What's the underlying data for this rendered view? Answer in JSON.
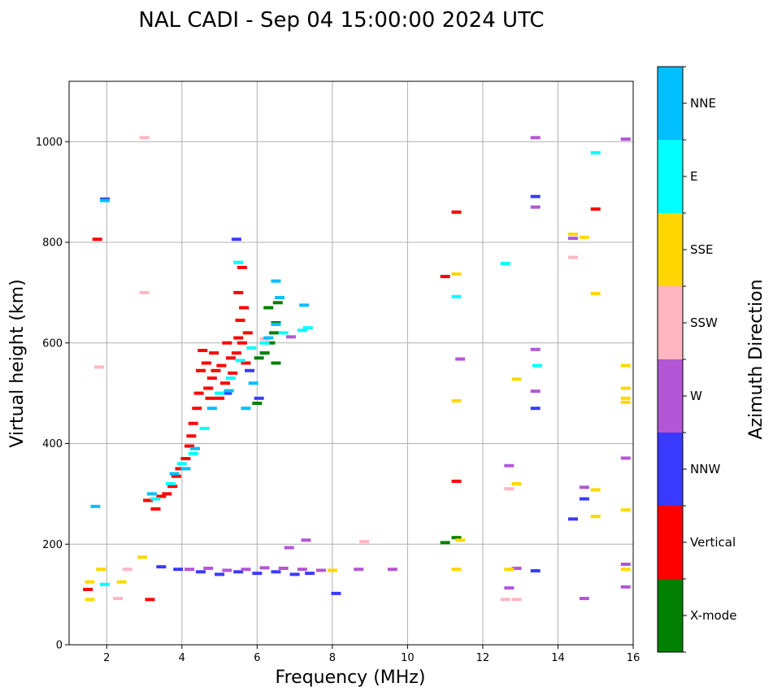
{
  "chart_data": {
    "type": "scatter",
    "title": "NAL CADI - Sep 04 15:00:00 2024 UTC",
    "xlabel": "Frequency (MHz)",
    "ylabel": "Virtual height (km)",
    "xlim": [
      1,
      16
    ],
    "ylim": [
      0,
      1120
    ],
    "xticks": [
      2,
      4,
      6,
      8,
      10,
      12,
      14,
      16
    ],
    "yticks": [
      0,
      200,
      400,
      600,
      800,
      1000
    ],
    "grid": true,
    "colorbar": {
      "label": "Azimuth Direction",
      "categories": [
        "X-mode",
        "Vertical",
        "NNW",
        "W",
        "SSW",
        "SSE",
        "E",
        "NNE"
      ],
      "colors": [
        "#008000",
        "#ff0000",
        "#3a3aff",
        "#b356d6",
        "#ffb6c1",
        "#ffd700",
        "#00ffff",
        "#00bfff"
      ]
    },
    "series": [
      {
        "name": "Vertical",
        "points": [
          [
            1.75,
            806
          ],
          [
            1.5,
            110
          ],
          [
            3.15,
            90
          ],
          [
            3.1,
            287
          ],
          [
            3.3,
            270
          ],
          [
            3.45,
            295
          ],
          [
            3.6,
            300
          ],
          [
            3.75,
            315
          ],
          [
            3.85,
            335
          ],
          [
            3.95,
            350
          ],
          [
            4.1,
            370
          ],
          [
            4.2,
            395
          ],
          [
            4.25,
            415
          ],
          [
            4.3,
            440
          ],
          [
            4.4,
            470
          ],
          [
            4.45,
            500
          ],
          [
            4.5,
            545
          ],
          [
            4.55,
            585
          ],
          [
            4.65,
            560
          ],
          [
            4.7,
            510
          ],
          [
            4.75,
            490
          ],
          [
            4.8,
            530
          ],
          [
            4.85,
            580
          ],
          [
            4.9,
            545
          ],
          [
            5.0,
            490
          ],
          [
            5.05,
            555
          ],
          [
            5.15,
            520
          ],
          [
            5.2,
            600
          ],
          [
            5.3,
            570
          ],
          [
            5.35,
            540
          ],
          [
            5.45,
            580
          ],
          [
            5.5,
            610
          ],
          [
            5.55,
            645
          ],
          [
            5.6,
            600
          ],
          [
            5.65,
            670
          ],
          [
            5.7,
            560
          ],
          [
            5.75,
            620
          ],
          [
            5.5,
            700
          ],
          [
            5.6,
            750
          ],
          [
            11.3,
            325
          ],
          [
            11.3,
            860
          ],
          [
            15.0,
            866
          ],
          [
            11.0,
            732
          ]
        ]
      },
      {
        "name": "X-mode",
        "points": [
          [
            6.0,
            480
          ],
          [
            6.05,
            570
          ],
          [
            6.2,
            580
          ],
          [
            6.35,
            600
          ],
          [
            6.45,
            620
          ],
          [
            6.5,
            640
          ],
          [
            6.55,
            680
          ],
          [
            6.3,
            670
          ],
          [
            6.5,
            560
          ],
          [
            11.3,
            213
          ],
          [
            11.0,
            203
          ]
        ]
      },
      {
        "name": "NNW",
        "points": [
          [
            1.95,
            886
          ],
          [
            3.45,
            155
          ],
          [
            3.9,
            150
          ],
          [
            4.5,
            145
          ],
          [
            5.0,
            140
          ],
          [
            5.5,
            145
          ],
          [
            6.0,
            142
          ],
          [
            6.5,
            145
          ],
          [
            7.0,
            140
          ],
          [
            7.4,
            142
          ],
          [
            8.1,
            102
          ],
          [
            5.45,
            806
          ],
          [
            13.4,
            891
          ],
          [
            13.4,
            470
          ],
          [
            13.4,
            147
          ],
          [
            14.4,
            250
          ],
          [
            14.7,
            290
          ],
          [
            6.05,
            490
          ],
          [
            5.2,
            500
          ],
          [
            5.8,
            545
          ]
        ]
      },
      {
        "name": "W",
        "points": [
          [
            4.2,
            150
          ],
          [
            4.7,
            152
          ],
          [
            5.2,
            148
          ],
          [
            5.7,
            150
          ],
          [
            6.2,
            153
          ],
          [
            6.7,
            152
          ],
          [
            7.2,
            150
          ],
          [
            7.7,
            148
          ],
          [
            8.7,
            150
          ],
          [
            9.6,
            150
          ],
          [
            6.85,
            193
          ],
          [
            7.3,
            208
          ],
          [
            13.4,
            1008
          ],
          [
            13.4,
            870
          ],
          [
            13.4,
            587
          ],
          [
            13.4,
            504
          ],
          [
            12.7,
            356
          ],
          [
            14.7,
            313
          ],
          [
            14.7,
            92
          ],
          [
            12.7,
            113
          ],
          [
            12.9,
            152
          ],
          [
            11.4,
            568
          ],
          [
            15.8,
            1005
          ],
          [
            15.8,
            371
          ],
          [
            15.8,
            160
          ],
          [
            15.8,
            115
          ],
          [
            14.4,
            808
          ],
          [
            6.9,
            612
          ]
        ]
      },
      {
        "name": "SSW",
        "points": [
          [
            2.3,
            92
          ],
          [
            2.55,
            150
          ],
          [
            3.0,
            700
          ],
          [
            3.0,
            1008
          ],
          [
            1.8,
            552
          ],
          [
            8.85,
            205
          ],
          [
            12.9,
            90
          ],
          [
            12.6,
            90
          ],
          [
            12.7,
            310
          ],
          [
            14.4,
            770
          ],
          [
            6.2,
            608
          ]
        ]
      },
      {
        "name": "SSE",
        "points": [
          [
            1.55,
            90
          ],
          [
            1.55,
            125
          ],
          [
            1.85,
            150
          ],
          [
            2.4,
            125
          ],
          [
            2.95,
            174
          ],
          [
            11.3,
            737
          ],
          [
            11.3,
            485
          ],
          [
            11.3,
            150
          ],
          [
            11.4,
            208
          ],
          [
            12.9,
            528
          ],
          [
            12.9,
            320
          ],
          [
            12.7,
            150
          ],
          [
            14.4,
            816
          ],
          [
            14.7,
            810
          ],
          [
            15.0,
            698
          ],
          [
            15.0,
            308
          ],
          [
            15.0,
            255
          ],
          [
            15.8,
            555
          ],
          [
            15.8,
            510
          ],
          [
            15.8,
            490
          ],
          [
            15.8,
            482
          ],
          [
            15.8,
            268
          ],
          [
            15.8,
            150
          ],
          [
            8.0,
            148
          ]
        ]
      },
      {
        "name": "E",
        "points": [
          [
            1.95,
            120
          ],
          [
            3.3,
            290
          ],
          [
            3.7,
            320
          ],
          [
            4.0,
            360
          ],
          [
            4.3,
            380
          ],
          [
            4.6,
            430
          ],
          [
            5.0,
            500
          ],
          [
            5.3,
            530
          ],
          [
            5.55,
            565
          ],
          [
            5.85,
            590
          ],
          [
            6.2,
            600
          ],
          [
            6.7,
            620
          ],
          [
            7.2,
            625
          ],
          [
            7.35,
            630
          ],
          [
            11.3,
            692
          ],
          [
            12.6,
            758
          ],
          [
            13.45,
            555
          ],
          [
            15.0,
            978
          ],
          [
            5.5,
            760
          ]
        ]
      },
      {
        "name": "NNE",
        "points": [
          [
            1.95,
            883
          ],
          [
            1.7,
            275
          ],
          [
            3.2,
            300
          ],
          [
            3.8,
            340
          ],
          [
            4.35,
            390
          ],
          [
            4.8,
            470
          ],
          [
            5.25,
            505
          ],
          [
            5.9,
            520
          ],
          [
            6.5,
            637
          ],
          [
            6.5,
            723
          ],
          [
            6.3,
            610
          ],
          [
            6.6,
            690
          ],
          [
            7.25,
            675
          ],
          [
            4.1,
            350
          ],
          [
            5.7,
            470
          ]
        ]
      }
    ]
  }
}
